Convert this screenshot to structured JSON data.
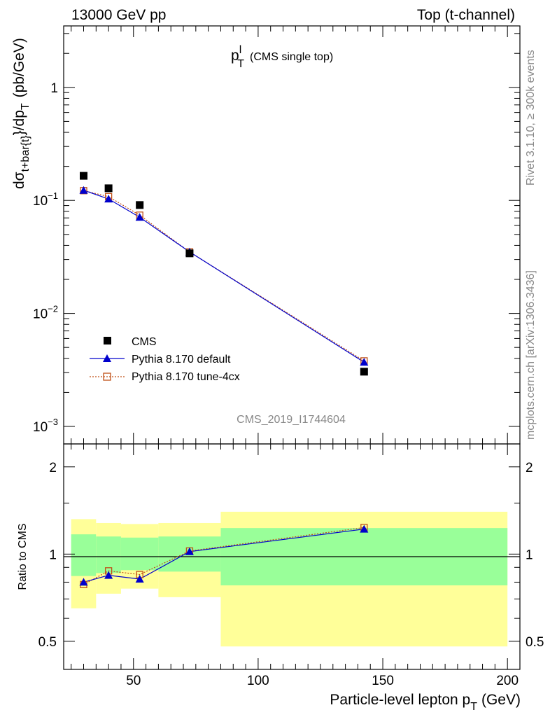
{
  "header": {
    "left": "13000 GeV pp",
    "right": "Top (t-channel)"
  },
  "side_text": {
    "top": "Rivet 3.1.10, ≥ 300k events",
    "bottom": "mcplots.cern.ch [arXiv:1306.3436]"
  },
  "main": {
    "title_main": "p",
    "title_sup": "l",
    "title_sub": "T",
    "title_note": "(CMS single top)",
    "ylabel_d": "dσ",
    "ylabel_sub1": "t+bar{t}",
    "ylabel_mid": "}/dp",
    "ylabel_sub2": "T",
    "ylabel_unit": "(pb/GeV)",
    "watermark": "CMS_2019_I1744604",
    "yticks": [
      {
        "base": "10",
        "exp": "−3",
        "value": 0.001
      },
      {
        "base": "10",
        "exp": "−2",
        "value": 0.01
      },
      {
        "base": "10",
        "exp": "−1",
        "value": 0.1
      },
      {
        "base": "1",
        "exp": "",
        "value": 1
      }
    ]
  },
  "ratio": {
    "ylabel": "Ratio to CMS",
    "ytick_labels": [
      "0.5",
      "1",
      "2"
    ],
    "ytick_values": [
      0.5,
      1,
      2
    ]
  },
  "xaxis": {
    "label_main": "Particle-level lepton p",
    "label_sub": "T",
    "label_unit": "(GeV)",
    "tick_labels": [
      "50",
      "100",
      "150",
      "200"
    ],
    "tick_values": [
      50,
      100,
      150,
      200
    ]
  },
  "legend": {
    "entries": [
      "CMS",
      "Pythia 8.170 default",
      "Pythia 8.170 tune-4cx"
    ]
  },
  "colors": {
    "data": "#000000",
    "default": "#0000cc",
    "tune4cx": "#c05018",
    "band_inner": "#99ff99",
    "band_outer": "#ffff99"
  },
  "chart_data": [
    {
      "type": "scatter",
      "title": "",
      "xlabel": "Particle-level lepton p_T (GeV)",
      "ylabel": "dσ_{t+bar{t}}/dp_T (pb/GeV)",
      "xlim": [
        22,
        205
      ],
      "ylim": [
        0.0007,
        3.5
      ],
      "yscale": "log",
      "x": [
        30,
        40,
        52.5,
        72.5,
        142.5
      ],
      "series": [
        {
          "name": "CMS",
          "marker": "square",
          "values": [
            0.165,
            0.128,
            0.091,
            0.034,
            0.00305
          ]
        },
        {
          "name": "Pythia 8.170 default",
          "marker": "triangle",
          "values": [
            0.123,
            0.103,
            0.071,
            0.035,
            0.0037
          ]
        },
        {
          "name": "Pythia 8.170 tune-4cx",
          "marker": "open-square",
          "values": [
            0.122,
            0.108,
            0.074,
            0.035,
            0.0038
          ]
        }
      ]
    },
    {
      "type": "line",
      "title": "",
      "xlabel": "Particle-level lepton p_T (GeV)",
      "ylabel": "Ratio to CMS",
      "xlim": [
        22,
        205
      ],
      "ylim": [
        0.4,
        2.4
      ],
      "yscale": "log",
      "x": [
        30,
        40,
        52.5,
        72.5,
        142.5
      ],
      "series": [
        {
          "name": "Pythia 8.170 default",
          "values": [
            0.8,
            0.845,
            0.82,
            1.02,
            1.22
          ]
        },
        {
          "name": "Pythia 8.170 tune-4cx",
          "values": [
            0.785,
            0.875,
            0.85,
            1.025,
            1.235
          ]
        }
      ],
      "uncertainty_bands": [
        {
          "x_low": 25,
          "x_high": 35,
          "inner": [
            0.84,
            1.17
          ],
          "outer": [
            0.65,
            1.32
          ]
        },
        {
          "x_low": 35,
          "x_high": 45,
          "inner": [
            0.86,
            1.15
          ],
          "outer": [
            0.73,
            1.28
          ]
        },
        {
          "x_low": 45,
          "x_high": 60,
          "inner": [
            0.88,
            1.14
          ],
          "outer": [
            0.76,
            1.27
          ]
        },
        {
          "x_low": 60,
          "x_high": 85,
          "inner": [
            0.87,
            1.15
          ],
          "outer": [
            0.71,
            1.28
          ]
        },
        {
          "x_low": 85,
          "x_high": 200,
          "inner": [
            0.78,
            1.23
          ],
          "outer": [
            0.48,
            1.4
          ]
        }
      ]
    }
  ]
}
